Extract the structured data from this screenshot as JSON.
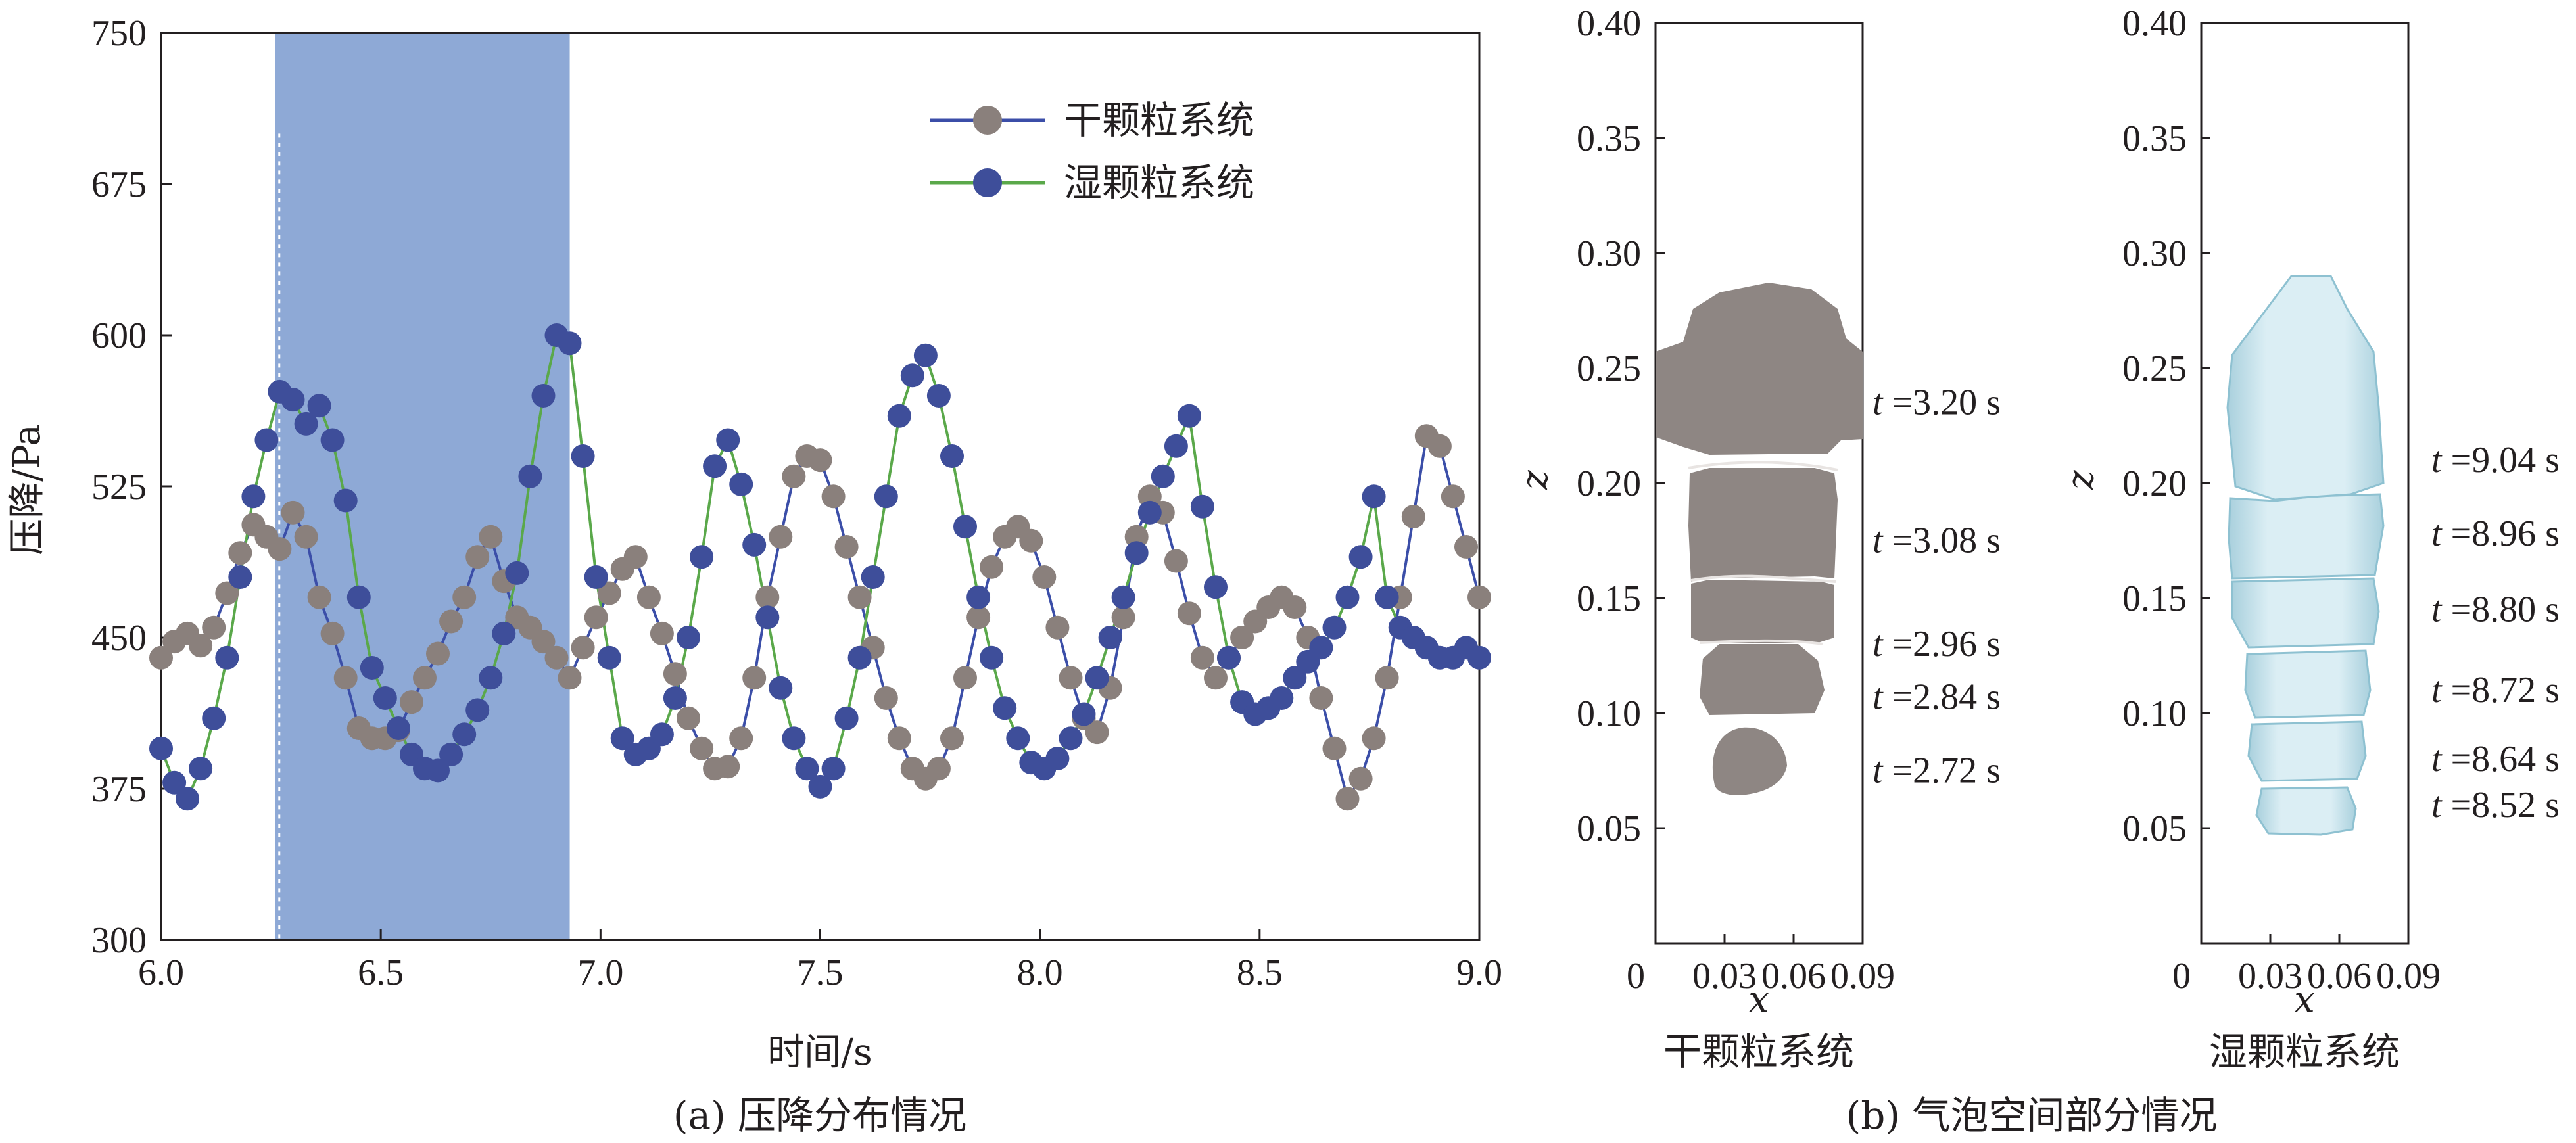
{
  "chart_data": [
    {
      "type": "line",
      "caption": "(a) 压降分布情况",
      "xlabel": "时间/s",
      "ylabel": "压降/Pa",
      "xlim": [
        6.0,
        9.0
      ],
      "ylim": [
        300,
        750
      ],
      "x_ticks": [
        "6.0",
        "6.5",
        "7.0",
        "7.5",
        "8.0",
        "8.5",
        "9.0"
      ],
      "y_ticks": [
        "300",
        "375",
        "450",
        "525",
        "600",
        "675",
        "750"
      ],
      "highlight_span": [
        6.26,
        6.93
      ],
      "highlight_color": "#8ea9d6",
      "legend_position": "top-right",
      "series": [
        {
          "name": "干颗粒系统",
          "marker_color": "#8a807c",
          "line_color": "#3b4ea8",
          "x": [
            6.0,
            6.03,
            6.06,
            6.09,
            6.12,
            6.15,
            6.18,
            6.21,
            6.24,
            6.27,
            6.3,
            6.33,
            6.36,
            6.39,
            6.42,
            6.45,
            6.48,
            6.51,
            6.54,
            6.57,
            6.6,
            6.63,
            6.66,
            6.69,
            6.72,
            6.75,
            6.78,
            6.81,
            6.84,
            6.87,
            6.9,
            6.93,
            6.96,
            6.99,
            7.02,
            7.05,
            7.08,
            7.11,
            7.14,
            7.17,
            7.2,
            7.23,
            7.26,
            7.29,
            7.32,
            7.35,
            7.38,
            7.41,
            7.44,
            7.47,
            7.5,
            7.53,
            7.56,
            7.59,
            7.62,
            7.65,
            7.68,
            7.71,
            7.74,
            7.77,
            7.8,
            7.83,
            7.86,
            7.89,
            7.92,
            7.95,
            7.98,
            8.01,
            8.04,
            8.07,
            8.1,
            8.13,
            8.16,
            8.19,
            8.22,
            8.25,
            8.28,
            8.31,
            8.34,
            8.37,
            8.4,
            8.43,
            8.46,
            8.49,
            8.52,
            8.55,
            8.58,
            8.61,
            8.64,
            8.67,
            8.7,
            8.73,
            8.76,
            8.79,
            8.82,
            8.85,
            8.88,
            8.91,
            8.94,
            8.97,
            9.0
          ],
          "y": [
            440,
            448,
            452,
            446,
            455,
            472,
            492,
            506,
            500,
            494,
            512,
            500,
            470,
            452,
            430,
            405,
            400,
            400,
            404,
            418,
            430,
            442,
            458,
            470,
            490,
            500,
            478,
            460,
            455,
            448,
            440,
            430,
            445,
            460,
            472,
            484,
            490,
            470,
            452,
            432,
            410,
            395,
            385,
            386,
            400,
            430,
            470,
            500,
            530,
            540,
            538,
            520,
            495,
            470,
            445,
            420,
            400,
            385,
            380,
            385,
            400,
            430,
            460,
            485,
            500,
            505,
            498,
            480,
            455,
            430,
            410,
            403,
            425,
            460,
            500,
            520,
            512,
            488,
            462,
            440,
            430,
            440,
            450,
            458,
            465,
            470,
            465,
            450,
            420,
            395,
            370,
            380,
            400,
            430,
            470,
            510,
            550,
            545,
            520,
            495,
            470
          ]
        },
        {
          "name": "湿颗粒系统",
          "marker_color": "#3e4e9a",
          "line_color": "#5aa84a",
          "x": [
            6.0,
            6.03,
            6.06,
            6.09,
            6.12,
            6.15,
            6.18,
            6.21,
            6.24,
            6.27,
            6.3,
            6.33,
            6.36,
            6.39,
            6.42,
            6.45,
            6.48,
            6.51,
            6.54,
            6.57,
            6.6,
            6.63,
            6.66,
            6.69,
            6.72,
            6.75,
            6.78,
            6.81,
            6.84,
            6.87,
            6.9,
            6.93,
            6.96,
            6.99,
            7.02,
            7.05,
            7.08,
            7.11,
            7.14,
            7.17,
            7.2,
            7.23,
            7.26,
            7.29,
            7.32,
            7.35,
            7.38,
            7.41,
            7.44,
            7.47,
            7.5,
            7.53,
            7.56,
            7.59,
            7.62,
            7.65,
            7.68,
            7.71,
            7.74,
            7.77,
            7.8,
            7.83,
            7.86,
            7.89,
            7.92,
            7.95,
            7.98,
            8.01,
            8.04,
            8.07,
            8.1,
            8.13,
            8.16,
            8.19,
            8.22,
            8.25,
            8.28,
            8.31,
            8.34,
            8.37,
            8.4,
            8.43,
            8.46,
            8.49,
            8.52,
            8.55,
            8.58,
            8.61,
            8.64,
            8.67,
            8.7,
            8.73,
            8.76,
            8.79,
            8.82,
            8.85,
            8.88,
            8.91,
            8.94,
            8.97,
            9.0
          ],
          "y": [
            395,
            378,
            370,
            385,
            410,
            440,
            480,
            520,
            548,
            572,
            568,
            556,
            565,
            548,
            518,
            470,
            435,
            420,
            405,
            392,
            385,
            384,
            392,
            402,
            414,
            430,
            452,
            482,
            530,
            570,
            600,
            596,
            540,
            480,
            440,
            400,
            392,
            395,
            402,
            420,
            450,
            490,
            535,
            548,
            526,
            496,
            460,
            425,
            400,
            385,
            376,
            385,
            410,
            440,
            480,
            520,
            560,
            580,
            590,
            570,
            540,
            505,
            470,
            440,
            415,
            400,
            388,
            385,
            390,
            400,
            412,
            430,
            450,
            470,
            492,
            512,
            530,
            545,
            560,
            515,
            475,
            440,
            418,
            412,
            415,
            420,
            430,
            438,
            445,
            455,
            470,
            490,
            520,
            470,
            455,
            450,
            445,
            440,
            440,
            445,
            440
          ]
        }
      ]
    },
    {
      "type": "diagram",
      "caption": "(b) 气泡空间部分情况",
      "xlabel": "x",
      "ylabel": "z",
      "x_ticks": [
        "0",
        "0.03",
        "0.06",
        "0.09"
      ],
      "y_ticks": [
        "0.05",
        "0.10",
        "0.15",
        "0.20",
        "0.25",
        "0.30",
        "0.35",
        "0.40"
      ],
      "xlim": [
        0,
        0.09
      ],
      "ylim": [
        0,
        0.4
      ],
      "panels": [
        {
          "title": "干颗粒系统",
          "bubble_color": "#8e8683",
          "labels": [
            "t =3.20 s",
            "t =3.08 s",
            "t =2.96 s",
            "t =2.84 s",
            "t =2.72 s"
          ],
          "label_z": [
            0.235,
            0.175,
            0.13,
            0.107,
            0.075
          ]
        },
        {
          "title": "湿颗粒系统",
          "bubble_color": "#b8dbe6",
          "labels": [
            "t =9.04 s",
            "t =8.96 s",
            "t =8.80 s",
            "t =8.72 s",
            "t =8.64 s",
            "t =8.52 s"
          ],
          "label_z": [
            0.21,
            0.178,
            0.145,
            0.11,
            0.08,
            0.06
          ]
        }
      ]
    }
  ]
}
